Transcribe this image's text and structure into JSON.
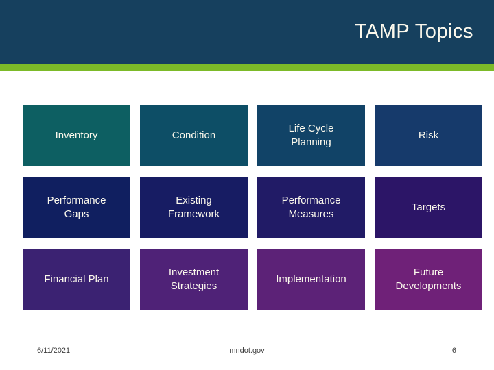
{
  "title": "TAMP Topics",
  "boxes": [
    {
      "label": "Inventory",
      "color": "#0d5f62"
    },
    {
      "label": "Condition",
      "color": "#0d4e66"
    },
    {
      "label": "Life Cycle Planning",
      "color": "#114367"
    },
    {
      "label": "Risk",
      "color": "#163a6b"
    },
    {
      "label": "Performance Gaps",
      "color": "#101f60"
    },
    {
      "label": "Existing Framework",
      "color": "#171c63"
    },
    {
      "label": "Performance Measures",
      "color": "#211b66"
    },
    {
      "label": "Targets",
      "color": "#2c1567"
    },
    {
      "label": "Financial Plan",
      "color": "#3b2272"
    },
    {
      "label": "Investment Strategies",
      "color": "#4f2277"
    },
    {
      "label": "Implementation",
      "color": "#5c2277"
    },
    {
      "label": "Future Developments",
      "color": "#6f2178"
    }
  ],
  "footer": {
    "date": "6/11/2021",
    "site": "mndot.gov",
    "page_number": "6"
  },
  "colors": {
    "header_bg": "#16405e",
    "accent_stripe": "#7cba28",
    "title_text": "#fbf8ec",
    "box_text": "#fbf8ec",
    "footer_text": "#3f3f3f",
    "background": "#ffffff"
  }
}
